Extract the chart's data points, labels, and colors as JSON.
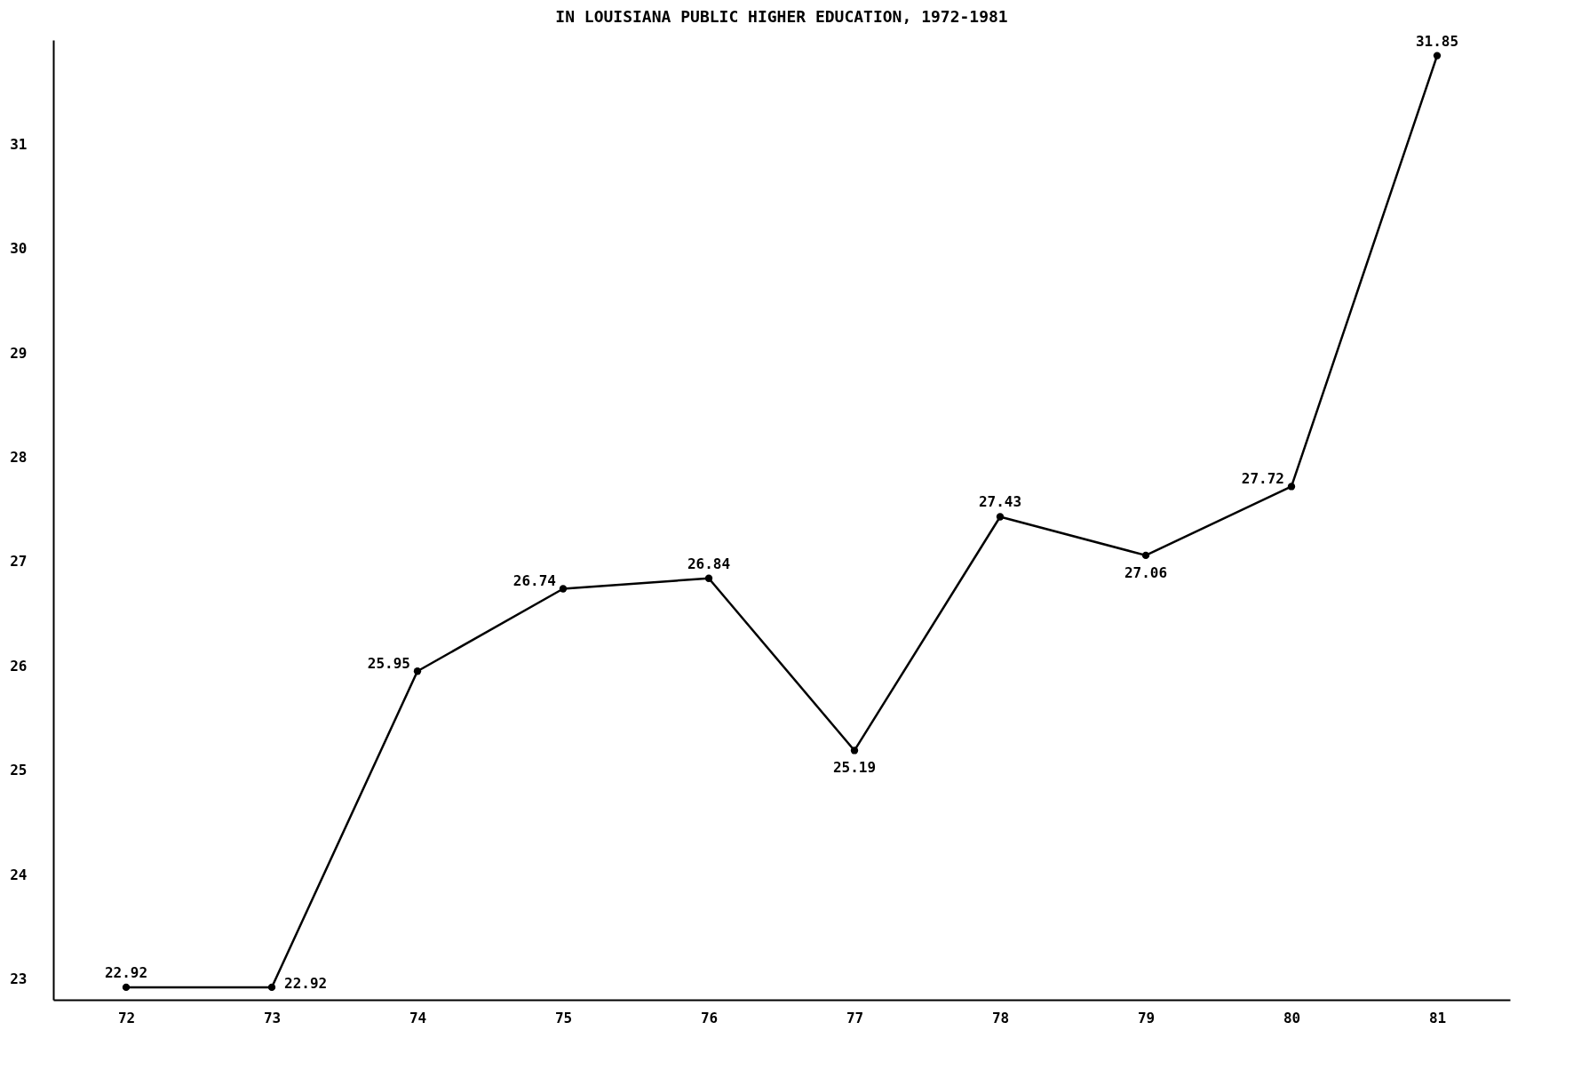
{
  "chart_data": {
    "type": "line",
    "title": "IN LOUISIANA PUBLIC HIGHER EDUCATION, 1972-1981",
    "categories": [
      "72",
      "73",
      "74",
      "75",
      "76",
      "77",
      "78",
      "79",
      "80",
      "81"
    ],
    "series": [
      {
        "color": "#000000",
        "values": [
          22.92,
          22.92,
          25.95,
          26.74,
          26.84,
          25.19,
          27.43,
          27.06,
          27.72,
          31.85
        ]
      }
    ],
    "ylim": [
      22.8,
      32
    ],
    "yticks": [
      23,
      24,
      25,
      26,
      27,
      28,
      29,
      30,
      31
    ],
    "data_labels": true,
    "marker": "circle",
    "line_style": "solid",
    "grid": false,
    "legend": false
  }
}
